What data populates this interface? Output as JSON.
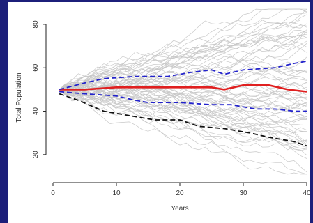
{
  "colors": {
    "frame": "#1c1f7a",
    "background": "#ffffff",
    "simulation": "#c8c8c8",
    "median": "#e02020",
    "quantile": "#2222cc",
    "lower": "#111111"
  },
  "chart_data": {
    "type": "line",
    "title": "",
    "xlabel": "Years",
    "ylabel": "Total Population",
    "xlim": [
      0,
      40
    ],
    "ylim": [
      10,
      88
    ],
    "x_ticks": [
      0,
      10,
      20,
      30,
      40
    ],
    "y_ticks": [
      20,
      40,
      60,
      80
    ],
    "grid": false,
    "legend": "none",
    "series": [
      {
        "role": "median",
        "style": "solid",
        "x": [
          1,
          5,
          10,
          15,
          20,
          25,
          27,
          30,
          32,
          34,
          37,
          40
        ],
        "values": [
          50,
          50,
          51,
          51,
          51,
          51,
          50,
          52,
          52,
          52,
          50,
          49
        ]
      },
      {
        "role": "upper-quantile",
        "style": "dashed",
        "x": [
          1,
          5,
          8,
          13,
          18,
          22,
          25,
          27,
          30,
          35,
          38,
          40
        ],
        "values": [
          50,
          53,
          55,
          56,
          56,
          58,
          59,
          57,
          59,
          60,
          62,
          63
        ]
      },
      {
        "role": "lower-quantile",
        "style": "dashed",
        "x": [
          1,
          5,
          10,
          13,
          15,
          20,
          25,
          28,
          32,
          35,
          38,
          40
        ],
        "values": [
          49,
          48,
          47,
          45,
          44,
          44,
          43,
          43,
          41,
          41,
          40,
          40
        ]
      },
      {
        "role": "lower-bound",
        "style": "dashed",
        "x": [
          1,
          4,
          8,
          12,
          16,
          20,
          23,
          27,
          31,
          34,
          38,
          40
        ],
        "values": [
          48,
          45,
          40,
          38,
          36,
          36,
          33,
          32,
          30,
          28,
          26,
          24
        ]
      }
    ],
    "simulations": {
      "count": 70,
      "start": 50,
      "steps": 40,
      "range_at_end": [
        12,
        87
      ]
    }
  }
}
